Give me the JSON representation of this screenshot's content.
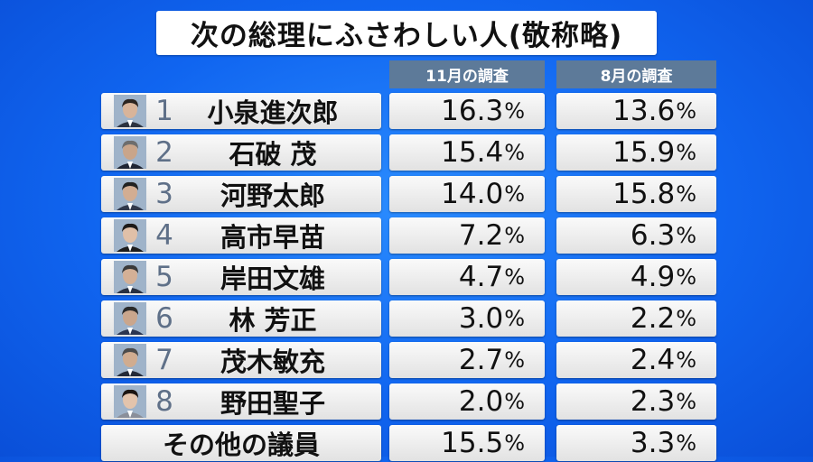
{
  "title": "次の総理にふさわしい人(敬称略)",
  "columns": [
    "11月の調査",
    "8月の調査"
  ],
  "rows": [
    {
      "rank": "1",
      "name": "小泉進次郎",
      "nov": "16.3",
      "aug": "13.6"
    },
    {
      "rank": "2",
      "name": "石破 茂",
      "nov": "15.4",
      "aug": "15.9"
    },
    {
      "rank": "3",
      "name": "河野太郎",
      "nov": "14.0",
      "aug": "15.8"
    },
    {
      "rank": "4",
      "name": "高市早苗",
      "nov": "7.2",
      "aug": "6.3"
    },
    {
      "rank": "5",
      "name": "岸田文雄",
      "nov": "4.7",
      "aug": "4.9"
    },
    {
      "rank": "6",
      "name": "林 芳正",
      "nov": "3.0",
      "aug": "2.2"
    },
    {
      "rank": "7",
      "name": "茂木敏充",
      "nov": "2.7",
      "aug": "2.4"
    },
    {
      "rank": "8",
      "name": "野田聖子",
      "nov": "2.0",
      "aug": "2.3"
    }
  ],
  "other": {
    "name": "その他の議員",
    "nov": "15.5",
    "aug": "3.3"
  },
  "percent_sign": "%",
  "chart_data": {
    "type": "table",
    "title": "次の総理にふさわしい人(敬称略)",
    "columns": [
      "",
      "11月の調査",
      "8月の調査"
    ],
    "categories": [
      "小泉進次郎",
      "石破 茂",
      "河野太郎",
      "高市早苗",
      "岸田文雄",
      "林 芳正",
      "茂木敏充",
      "野田聖子",
      "その他の議員"
    ],
    "series": [
      {
        "name": "11月の調査",
        "values": [
          16.3,
          15.4,
          14.0,
          7.2,
          4.7,
          3.0,
          2.7,
          2.0,
          15.5
        ]
      },
      {
        "name": "8月の調査",
        "values": [
          13.6,
          15.9,
          15.8,
          6.3,
          4.9,
          2.2,
          2.4,
          2.3,
          3.3
        ]
      }
    ],
    "unit": "%"
  },
  "colors": {
    "background": "#1065f0",
    "header": "#5d7a99",
    "rank": "#5f7088",
    "cell": "#f2f2f2"
  }
}
